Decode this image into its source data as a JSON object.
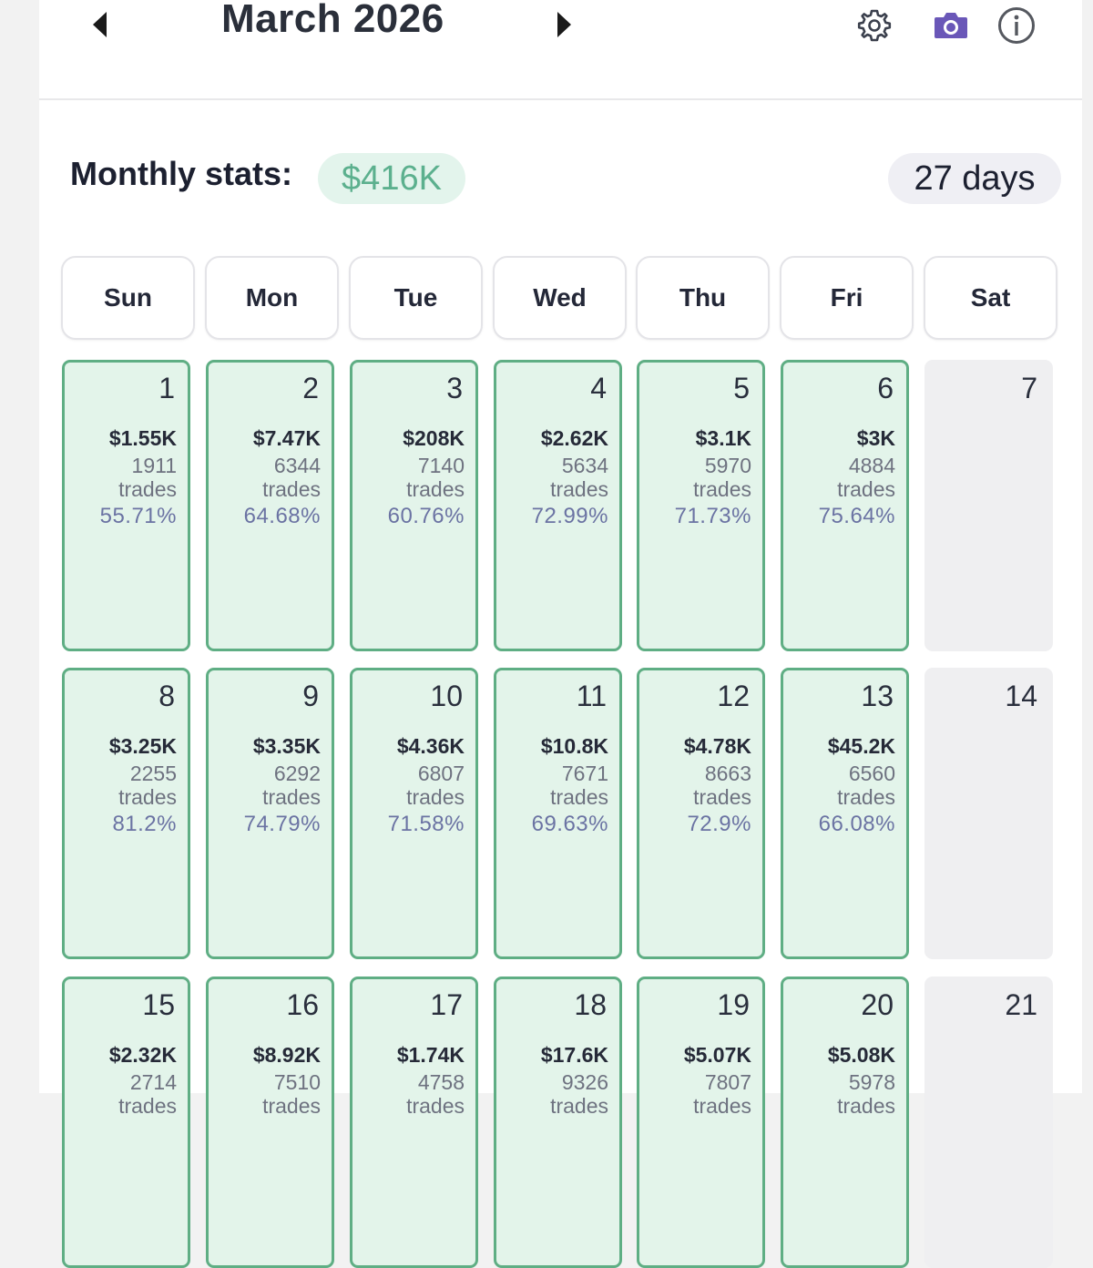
{
  "header": {
    "month": "March 2026",
    "prev_icon": "caret-left-icon",
    "next_icon": "caret-right-icon",
    "settings_icon": "gear-icon",
    "camera_icon": "camera-icon",
    "info_icon": "info-icon"
  },
  "stats": {
    "label": "Monthly stats:",
    "total": "$416K",
    "days": "27 days"
  },
  "weekdays": [
    "Sun",
    "Mon",
    "Tue",
    "Wed",
    "Thu",
    "Fri",
    "Sat"
  ],
  "days": [
    {
      "day": "1",
      "pnl": "$1.55K",
      "count": "1911",
      "unit": "trades",
      "rate": "55.71%"
    },
    {
      "day": "2",
      "pnl": "$7.47K",
      "count": "6344",
      "unit": "trades",
      "rate": "64.68%"
    },
    {
      "day": "3",
      "pnl": "$208K",
      "count": "7140",
      "unit": "trades",
      "rate": "60.76%"
    },
    {
      "day": "4",
      "pnl": "$2.62K",
      "count": "5634",
      "unit": "trades",
      "rate": "72.99%"
    },
    {
      "day": "5",
      "pnl": "$3.1K",
      "count": "5970",
      "unit": "trades",
      "rate": "71.73%"
    },
    {
      "day": "6",
      "pnl": "$3K",
      "count": "4884",
      "unit": "trades",
      "rate": "75.64%"
    },
    {
      "day": "7"
    },
    {
      "day": "8",
      "pnl": "$3.25K",
      "count": "2255",
      "unit": "trades",
      "rate": "81.2%"
    },
    {
      "day": "9",
      "pnl": "$3.35K",
      "count": "6292",
      "unit": "trades",
      "rate": "74.79%"
    },
    {
      "day": "10",
      "pnl": "$4.36K",
      "count": "6807",
      "unit": "trades",
      "rate": "71.58%"
    },
    {
      "day": "11",
      "pnl": "$10.8K",
      "count": "7671",
      "unit": "trades",
      "rate": "69.63%"
    },
    {
      "day": "12",
      "pnl": "$4.78K",
      "count": "8663",
      "unit": "trades",
      "rate": "72.9%"
    },
    {
      "day": "13",
      "pnl": "$45.2K",
      "count": "6560",
      "unit": "trades",
      "rate": "66.08%"
    },
    {
      "day": "14"
    },
    {
      "day": "15",
      "pnl": "$2.32K",
      "count": "2714",
      "unit": "trades",
      "rate": ""
    },
    {
      "day": "16",
      "pnl": "$8.92K",
      "count": "7510",
      "unit": "trades",
      "rate": ""
    },
    {
      "day": "17",
      "pnl": "$1.74K",
      "count": "4758",
      "unit": "trades",
      "rate": ""
    },
    {
      "day": "18",
      "pnl": "$17.6K",
      "count": "9326",
      "unit": "trades",
      "rate": ""
    },
    {
      "day": "19",
      "pnl": "$5.07K",
      "count": "7807",
      "unit": "trades",
      "rate": ""
    },
    {
      "day": "20",
      "pnl": "$5.08K",
      "count": "5978",
      "unit": "trades",
      "rate": ""
    },
    {
      "day": "21"
    }
  ],
  "colors": {
    "profit_fill": "#e3f4ea",
    "profit_border": "#5fae84",
    "empty_fill": "#efeff1",
    "accent_purple": "#6a57b8",
    "winrate": "#6b73a3"
  }
}
